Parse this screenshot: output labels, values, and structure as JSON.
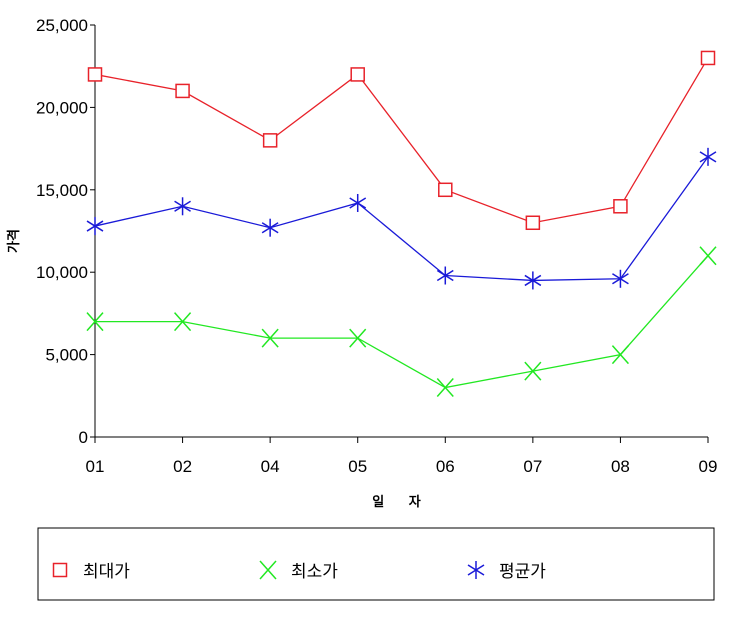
{
  "chart_data": {
    "type": "line",
    "title": "",
    "xlabel": "일 자",
    "ylabel": "가격",
    "categories": [
      "01",
      "02",
      "04",
      "05",
      "06",
      "07",
      "08",
      "09"
    ],
    "ylim": [
      0,
      25000
    ],
    "yticks": [
      0,
      5000,
      10000,
      15000,
      20000,
      25000
    ],
    "ytick_labels": [
      "0",
      "5,000",
      "10,000",
      "15,000",
      "20,000",
      "25,000"
    ],
    "grid": false,
    "legend_position": "bottom",
    "series": [
      {
        "name": "최대가",
        "color": "#e8222a",
        "marker": "square",
        "values": [
          22000,
          21000,
          18000,
          22000,
          15000,
          13000,
          14000,
          23000
        ]
      },
      {
        "name": "최소가",
        "color": "#22e822",
        "marker": "x",
        "values": [
          7000,
          7000,
          6000,
          6000,
          3000,
          4000,
          5000,
          11000
        ]
      },
      {
        "name": "평균가",
        "color": "#1a1ad8",
        "marker": "asterisk",
        "values": [
          12800,
          14000,
          12700,
          14200,
          9800,
          9500,
          9600,
          17000
        ]
      }
    ]
  }
}
